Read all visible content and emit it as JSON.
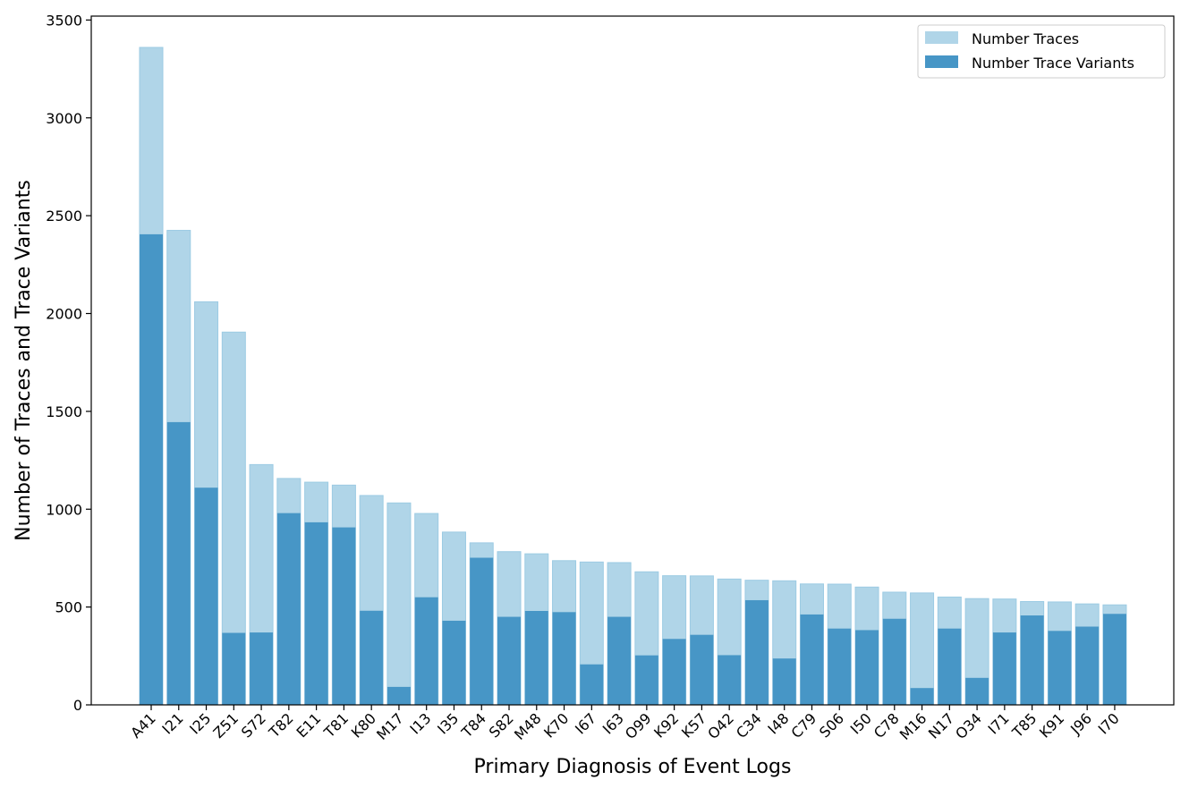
{
  "chart_data": {
    "type": "bar",
    "xlabel": "Primary Diagnosis of Event Logs",
    "ylabel": "Number of Traces and Trace Variants",
    "ylim": [
      0,
      3520
    ],
    "yticks": [
      0,
      500,
      1000,
      1500,
      2000,
      2500,
      3000,
      3500
    ],
    "grid": false,
    "legend_position": "top-right",
    "categories": [
      "A41",
      "I21",
      "I25",
      "Z51",
      "S72",
      "T82",
      "E11",
      "T81",
      "K80",
      "M17",
      "I13",
      "I35",
      "T84",
      "S82",
      "M48",
      "K70",
      "I67",
      "I63",
      "O99",
      "K92",
      "K57",
      "O42",
      "C34",
      "I48",
      "C79",
      "S06",
      "I50",
      "C78",
      "M16",
      "N17",
      "O34",
      "I71",
      "T85",
      "K91",
      "J96",
      "I70"
    ],
    "series": [
      {
        "name": "Number Traces",
        "color": "#b0d5e8",
        "values": [
          3360,
          2425,
          2060,
          1905,
          1228,
          1157,
          1138,
          1123,
          1070,
          1032,
          978,
          883,
          828,
          783,
          772,
          737,
          730,
          727,
          680,
          660,
          659,
          643,
          637,
          634,
          618,
          617,
          602,
          576,
          572,
          551,
          543,
          541,
          528,
          526,
          516,
          511
        ]
      },
      {
        "name": "Number Trace Variants",
        "color": "#4796c6",
        "values": [
          2405,
          1445,
          1110,
          368,
          370,
          980,
          933,
          907,
          481,
          92,
          550,
          430,
          752,
          450,
          480,
          474,
          207,
          450,
          253,
          337,
          358,
          254,
          535,
          237,
          462,
          390,
          382,
          440,
          86,
          390,
          138,
          370,
          457,
          378,
          400,
          465
        ]
      }
    ]
  }
}
